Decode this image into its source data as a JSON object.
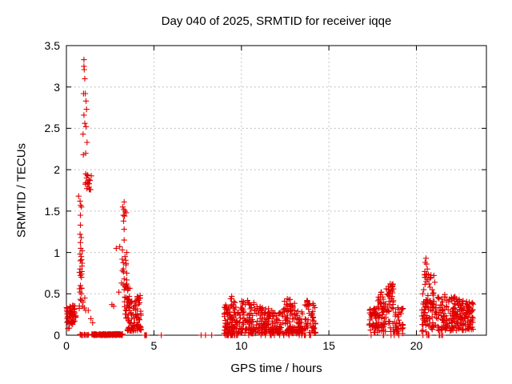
{
  "window": {
    "title": "Day 040 of 2025, SRMTID for receiver iqqe"
  },
  "colors": {
    "marker": "#e00000",
    "grid": "#b0b0b0",
    "axis": "#000000",
    "background": "#ffffff",
    "text": "#000000"
  },
  "chart_data": {
    "type": "scatter",
    "title": "Day 040 of 2025, SRMTID for receiver iqqe",
    "xlabel": "GPS time / hours",
    "ylabel": "SRMTID / TECUs",
    "xlim": [
      0,
      24
    ],
    "ylim": [
      0,
      3.5
    ],
    "grid": true,
    "legend": "none",
    "marker": {
      "shape": "plus",
      "size": 7
    },
    "xticks": [
      {
        "v": 0,
        "label": "0"
      },
      {
        "v": 5,
        "label": "5"
      },
      {
        "v": 10,
        "label": "10"
      },
      {
        "v": 15,
        "label": "15"
      },
      {
        "v": 20,
        "label": "20"
      }
    ],
    "yticks": [
      {
        "v": 0,
        "label": "0"
      },
      {
        "v": 0.5,
        "label": "0.5"
      },
      {
        "v": 1,
        "label": "1"
      },
      {
        "v": 1.5,
        "label": "1.5"
      },
      {
        "v": 2,
        "label": "2"
      },
      {
        "v": 2.5,
        "label": "2.5"
      },
      {
        "v": 3,
        "label": "3"
      },
      {
        "v": 3.5,
        "label": "3.5"
      }
    ],
    "points": [
      [
        0.78,
        1.62
      ],
      [
        0.82,
        1.57
      ],
      [
        0.86,
        1.55
      ],
      [
        0.8,
        1.45
      ],
      [
        0.8,
        1.33
      ],
      [
        0.78,
        1.22
      ],
      [
        0.85,
        1.18
      ],
      [
        0.8,
        1.12
      ],
      [
        0.82,
        1.05
      ],
      [
        0.9,
        1.02
      ],
      [
        0.78,
        0.98
      ],
      [
        0.85,
        0.95
      ],
      [
        0.8,
        0.9
      ],
      [
        0.9,
        0.87
      ],
      [
        0.78,
        0.8
      ],
      [
        0.88,
        0.77
      ],
      [
        0.8,
        0.72
      ],
      [
        0.86,
        0.7
      ],
      [
        0.8,
        0.6
      ],
      [
        0.78,
        0.52
      ],
      [
        0.86,
        0.5
      ],
      [
        0.85,
        0.42
      ],
      [
        0.95,
        0.4
      ],
      [
        0.92,
        0.35
      ],
      [
        1.02,
        0.33
      ],
      [
        1.05,
        0.45
      ],
      [
        1.1,
        0.3
      ],
      [
        1.25,
        0.3
      ],
      [
        1.4,
        0.2
      ],
      [
        1.5,
        0.15
      ],
      [
        1.0,
        3.33
      ],
      [
        1.0,
        3.25
      ],
      [
        1.02,
        3.21
      ],
      [
        1.05,
        3.1
      ],
      [
        0.98,
        2.92
      ],
      [
        1.08,
        2.92
      ],
      [
        1.12,
        2.83
      ],
      [
        1.15,
        2.73
      ],
      [
        1.0,
        2.66
      ],
      [
        1.05,
        2.56
      ],
      [
        1.12,
        2.52
      ],
      [
        0.95,
        2.43
      ],
      [
        1.18,
        2.33
      ],
      [
        1.1,
        2.2
      ],
      [
        0.97,
        2.18
      ],
      [
        1.1,
        1.95
      ],
      [
        1.15,
        1.9
      ],
      [
        1.22,
        1.93
      ],
      [
        1.28,
        1.88
      ],
      [
        1.3,
        1.83
      ],
      [
        1.35,
        1.87
      ],
      [
        1.3,
        1.79
      ],
      [
        1.38,
        1.76
      ],
      [
        1.2,
        1.85
      ],
      [
        0.7,
        1.68
      ],
      [
        3.3,
        1.61
      ],
      [
        3.22,
        1.55
      ],
      [
        3.28,
        1.52
      ],
      [
        3.35,
        1.5
      ],
      [
        3.42,
        1.48
      ],
      [
        3.25,
        1.45
      ],
      [
        3.32,
        1.44
      ],
      [
        3.27,
        1.38
      ],
      [
        3.3,
        1.28
      ],
      [
        3.3,
        1.15
      ],
      [
        3.05,
        1.07
      ],
      [
        3.2,
        1.03
      ],
      [
        2.85,
        1.05
      ],
      [
        3.45,
        1.0
      ],
      [
        3.35,
        0.95
      ],
      [
        3.4,
        0.85
      ],
      [
        3.2,
        0.78
      ],
      [
        3.45,
        0.75
      ],
      [
        3.3,
        0.68
      ],
      [
        3.15,
        0.63
      ],
      [
        3.45,
        0.62
      ],
      [
        3.0,
        0.52
      ],
      [
        3.3,
        0.55
      ],
      [
        3.5,
        0.57
      ],
      [
        2.7,
        0.35
      ],
      [
        2.6,
        0.37
      ],
      [
        5.42,
        0
      ],
      [
        7.7,
        0
      ],
      [
        7.95,
        0
      ],
      [
        8.3,
        0
      ],
      [
        9.45,
        0.47
      ],
      [
        9.38,
        0.44
      ],
      [
        10.35,
        0.42
      ],
      [
        12.62,
        0.44
      ],
      [
        13.75,
        0.42
      ],
      [
        17.95,
        0.49
      ],
      [
        18.0,
        0.52
      ],
      [
        18.45,
        0.55
      ],
      [
        18.5,
        0.62
      ],
      [
        18.55,
        0.58
      ],
      [
        20.55,
        0.93
      ],
      [
        20.5,
        0.88
      ],
      [
        20.58,
        0.86
      ],
      [
        20.62,
        0.8
      ],
      [
        20.48,
        0.77
      ],
      [
        20.6,
        0.74
      ],
      [
        20.55,
        0.7
      ],
      [
        20.65,
        0.67
      ],
      [
        20.72,
        0.62
      ],
      [
        20.42,
        0.55
      ],
      [
        20.36,
        0.5
      ],
      [
        21.0,
        0.72
      ],
      [
        21.05,
        0.64
      ],
      [
        20.78,
        0.58
      ],
      [
        20.9,
        0.55
      ]
    ],
    "clusters": [
      {
        "x0": 0.0,
        "x1": 0.55,
        "y0": 0.14,
        "y1": 0.36,
        "n": 60,
        "seed": 11
      },
      {
        "x0": 0.02,
        "x1": 0.5,
        "y0": 0.08,
        "y1": 0.16,
        "n": 6,
        "seed": 12
      },
      {
        "x0": 0.72,
        "x1": 0.98,
        "y0": 0.32,
        "y1": 1.0,
        "n": 10,
        "seed": 13
      },
      {
        "x0": 1.02,
        "x1": 1.45,
        "y0": 1.76,
        "y1": 1.95,
        "n": 9,
        "seed": 14
      },
      {
        "x0": 1.45,
        "x1": 3.25,
        "y0": 0.0,
        "y1": 0.015,
        "n": 140,
        "seed": 15
      },
      {
        "x0": 0.66,
        "x1": 1.3,
        "y0": 0.0,
        "y1": 0.01,
        "n": 10,
        "seed": 16
      },
      {
        "x0": 3.16,
        "x1": 3.52,
        "y0": 0.5,
        "y1": 1.05,
        "n": 10,
        "seed": 17
      },
      {
        "x0": 3.35,
        "x1": 4.3,
        "y0": 0.05,
        "y1": 0.48,
        "n": 95,
        "seed": 18,
        "p": 1.6
      },
      {
        "x0": 3.3,
        "x1": 3.75,
        "y0": 0.3,
        "y1": 0.62,
        "n": 14,
        "seed": 19
      },
      {
        "x0": 4.35,
        "x1": 4.65,
        "y0": 0,
        "y1": 0,
        "n": 5,
        "seed": 20
      },
      {
        "x0": 9.0,
        "x1": 9.35,
        "y0": 0.02,
        "y1": 0.38,
        "n": 40,
        "seed": 21,
        "p": 1.4
      },
      {
        "x0": 9.35,
        "x1": 9.95,
        "y0": 0.02,
        "y1": 0.47,
        "n": 60,
        "seed": 22,
        "p": 1.4
      },
      {
        "x0": 9.95,
        "x1": 10.8,
        "y0": 0.02,
        "y1": 0.42,
        "n": 75,
        "seed": 23,
        "p": 1.4
      },
      {
        "x0": 10.8,
        "x1": 11.6,
        "y0": 0.02,
        "y1": 0.36,
        "n": 75,
        "seed": 24,
        "p": 1.4
      },
      {
        "x0": 11.6,
        "x1": 12.3,
        "y0": 0.02,
        "y1": 0.3,
        "n": 60,
        "seed": 25,
        "p": 1.4
      },
      {
        "x0": 12.3,
        "x1": 13.05,
        "y0": 0.02,
        "y1": 0.44,
        "n": 70,
        "seed": 26,
        "p": 1.4
      },
      {
        "x0": 13.05,
        "x1": 13.6,
        "y0": 0.02,
        "y1": 0.33,
        "n": 45,
        "seed": 27,
        "p": 1.4
      },
      {
        "x0": 13.6,
        "x1": 14.25,
        "y0": 0.02,
        "y1": 0.42,
        "n": 50,
        "seed": 28,
        "p": 1.4
      },
      {
        "x0": 9.02,
        "x1": 9.65,
        "y0": 0,
        "y1": 0,
        "n": 15,
        "seed": 29
      },
      {
        "x0": 9.7,
        "x1": 14.25,
        "y0": 0,
        "y1": 0,
        "n": 22,
        "seed": 30
      },
      {
        "x0": 17.3,
        "x1": 17.75,
        "y0": 0.03,
        "y1": 0.33,
        "n": 42,
        "seed": 31,
        "p": 1.3
      },
      {
        "x0": 17.75,
        "x1": 18.2,
        "y0": 0.03,
        "y1": 0.52,
        "n": 48,
        "seed": 32,
        "p": 1.3
      },
      {
        "x0": 18.2,
        "x1": 18.75,
        "y0": 0.04,
        "y1": 0.62,
        "n": 48,
        "seed": 33,
        "p": 1.2
      },
      {
        "x0": 18.75,
        "x1": 19.25,
        "y0": 0.02,
        "y1": 0.35,
        "n": 32,
        "seed": 34,
        "p": 1.3
      },
      {
        "x0": 17.4,
        "x1": 19.25,
        "y0": 0,
        "y1": 0,
        "n": 6,
        "seed": 35
      },
      {
        "x0": 20.45,
        "x1": 20.85,
        "y0": 0.33,
        "y1": 0.75,
        "n": 22,
        "seed": 36
      },
      {
        "x0": 20.3,
        "x1": 20.95,
        "y0": 0.04,
        "y1": 0.42,
        "n": 45,
        "seed": 37,
        "p": 1.2
      },
      {
        "x0": 20.9,
        "x1": 21.65,
        "y0": 0.05,
        "y1": 0.52,
        "n": 55,
        "seed": 38,
        "p": 1.2
      },
      {
        "x0": 21.65,
        "x1": 22.45,
        "y0": 0.05,
        "y1": 0.46,
        "n": 85,
        "seed": 39,
        "p": 1.1
      },
      {
        "x0": 22.45,
        "x1": 23.25,
        "y0": 0.06,
        "y1": 0.42,
        "n": 85,
        "seed": 40,
        "p": 1.1
      },
      {
        "x0": 20.35,
        "x1": 20.75,
        "y0": 0,
        "y1": 0,
        "n": 6,
        "seed": 41
      },
      {
        "x0": 21.25,
        "x1": 21.55,
        "y0": 0,
        "y1": 0,
        "n": 4,
        "seed": 42
      }
    ]
  }
}
